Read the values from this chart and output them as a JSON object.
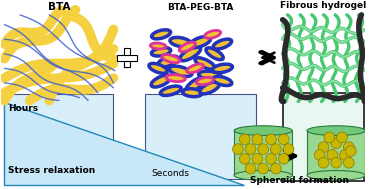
{
  "bg_color": "#ffffff",
  "panel_bg_blue": "#d8eef8",
  "panel_bg_green": "#e0f5e8",
  "labels": {
    "bta": "BTA",
    "btapeg": "BTA-PEG-BTA",
    "hydrogel": "Fibrous hydrogel",
    "hours": "Hours",
    "seconds": "Seconds",
    "stress": "Stress relaxation",
    "spheroid": "Spheroid formation"
  },
  "colors": {
    "yellow_fiber": "#f5d040",
    "blue_line": "#4060cc",
    "blue_oval": "#3344cc",
    "pink_oval": "#e050a0",
    "yellow_oval": "#f0c840",
    "green1": "#60d888",
    "green2": "#40c070",
    "green3": "#20a050",
    "dark_green": "#1a5c2a",
    "light_green_fiber": "#a0e8b0",
    "arrow_color": "#111111",
    "cell_yellow": "#c8b800",
    "cell_edge": "#887800",
    "cyl_body": "#98d890",
    "cyl_top": "#70c878",
    "cyl_edge": "#2a7a40",
    "tri_fill": "#c8e8f8",
    "tri_edge": "#2288bb"
  },
  "fontsize_label": 6.5,
  "fontsize_title": 7.5
}
